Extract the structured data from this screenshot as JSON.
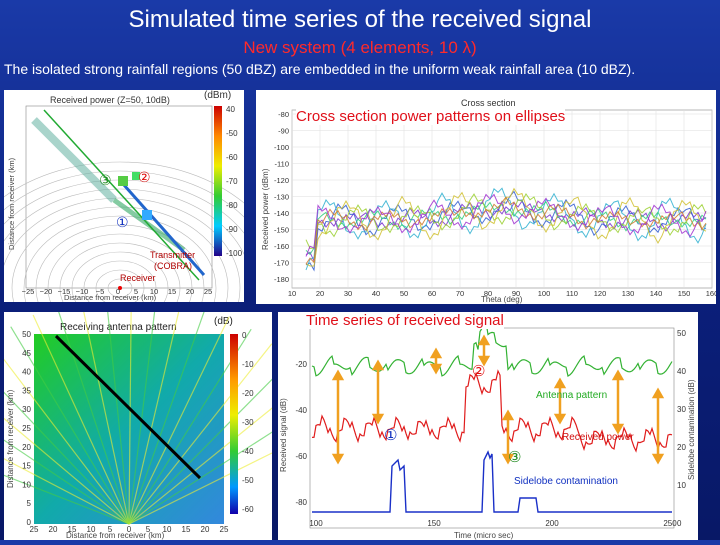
{
  "slide": {
    "title": "Simulated time  series of the received signal",
    "subtitle": "New system    (4 elements, 10 λ)",
    "description": "The isolated strong rainfall regions (50 dBZ) are embedded in the uniform weak rainfall area (10 dBZ)."
  },
  "panel_rx_power": {
    "title": "Received power  (Z=50,  10dB)",
    "units": "(dBm)",
    "xlabel": "Distance from receiver (km)",
    "ylabel": "Distance from receiver (km)",
    "colorbar_ticks": [
      "40",
      "-50",
      "-60",
      "-70",
      "-80",
      "-90",
      "-100"
    ],
    "x_ticks": [
      "−25",
      "−20",
      "−15",
      "−10",
      "−5",
      "0",
      "5",
      "10",
      "15",
      "20",
      "25"
    ],
    "marker_1": "①",
    "marker_2": "②",
    "marker_3": "③",
    "transmitter_label": "Transmitter\n(COBRA)",
    "receiver_label": "Receiver"
  },
  "panel_cross_section": {
    "title": "Cross section",
    "overlay_label": "Cross section power patterns on ellipses",
    "ylabel": "Received power (dBm)",
    "xlabel": "Theta (deg)",
    "y_ticks": [
      "-80",
      "-90",
      "-100",
      "-110",
      "-120",
      "-130",
      "-140",
      "-150",
      "-160",
      "-170",
      "-180"
    ],
    "x_ticks": [
      "10",
      "20",
      "30",
      "40",
      "50",
      "60",
      "70",
      "80",
      "90",
      "100",
      "110",
      "120",
      "130",
      "140",
      "150",
      "160"
    ]
  },
  "panel_antenna": {
    "title": "Receiving antenna pattern",
    "units": "(dB)",
    "xlabel": "Distance from receiver (km)",
    "ylabel": "Distance from receiver (km)",
    "y_ticks": [
      "50",
      "45",
      "40",
      "35",
      "30",
      "25",
      "20",
      "15",
      "10",
      "5",
      "0"
    ],
    "x_ticks": [
      "25",
      "20",
      "15",
      "10",
      "5",
      "0",
      "5",
      "10",
      "15",
      "20",
      "25"
    ],
    "colorbar_ticks": [
      "0",
      "-10",
      "-20",
      "-30",
      "-40",
      "-50",
      "-60"
    ]
  },
  "panel_time_series": {
    "overlay_label": "Time series of received signal",
    "ylabel": "Received signal (dB)",
    "y2label": "Sidelobe contamination (dB)",
    "xlabel": "Time (micro sec)",
    "x_ticks": [
      "100",
      "150",
      "200",
      "250"
    ],
    "y_ticks": [
      "-20",
      "-40",
      "-60",
      "-80"
    ],
    "y2_ticks": [
      "50",
      "40",
      "30",
      "20",
      "10",
      "0"
    ],
    "antenna_pattern_label": "Antenna pattern",
    "received_power_label": "Received power",
    "sidelobe_label": "Sidelobe contamination",
    "marker_1": "①",
    "marker_2": "②",
    "marker_3": "③"
  }
}
